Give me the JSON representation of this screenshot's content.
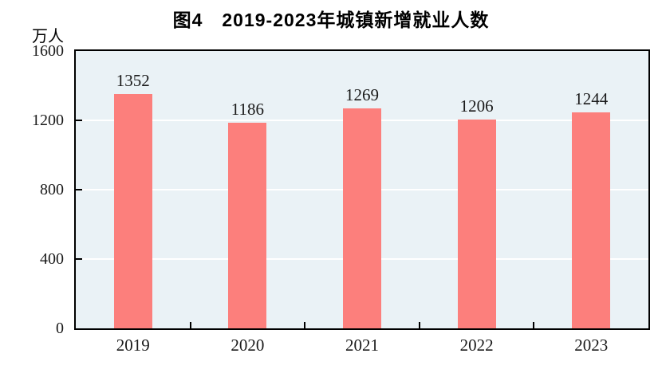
{
  "chart": {
    "title": "图4　2019-2023年城镇新增就业人数",
    "unit_label": "万人"
  },
  "colors": {
    "bar": "#fc7f7c",
    "plot_background": "#eaf2f6",
    "gridline": "#ffffff",
    "axis": "#000000",
    "text": "#1a1a1a",
    "page_background": "#ffffff"
  },
  "chart_data": {
    "type": "bar",
    "title": "图4　2019-2023年城镇新增就业人数",
    "categories": [
      "2019",
      "2020",
      "2021",
      "2022",
      "2023"
    ],
    "values": [
      1352,
      1186,
      1269,
      1206,
      1244
    ],
    "bar_value_labels": [
      "1352",
      "1186",
      "1269",
      "1206",
      "1244"
    ],
    "xlabel": "",
    "ylabel": "万人",
    "ylim": [
      0,
      1600
    ],
    "yticks": [
      0,
      400,
      800,
      1200,
      1600
    ],
    "grid": "horizontal white gridlines at 400/800/1200, drawn behind bars",
    "legend": "none",
    "bar_labels_shown": true
  }
}
